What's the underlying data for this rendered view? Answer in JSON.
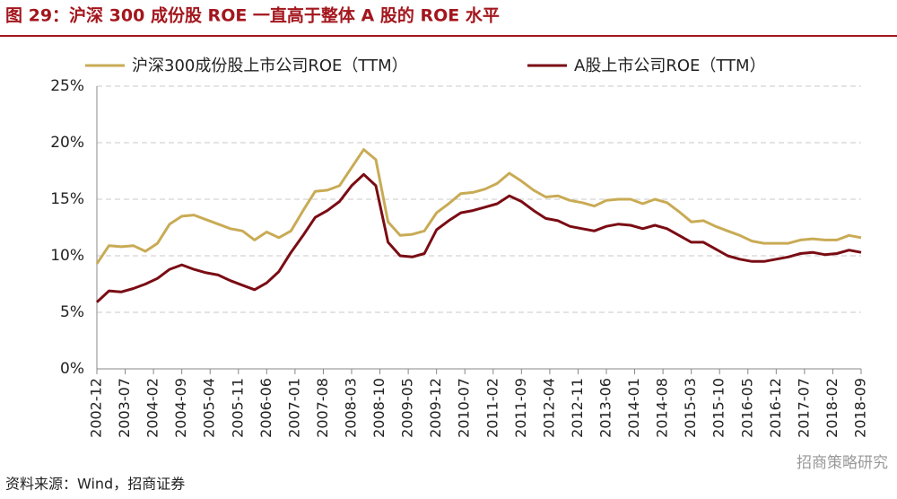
{
  "chart_data": {
    "type": "line",
    "title": "图 29：沪深 300 成份股 ROE 一直高于整体 A 股的 ROE 水平",
    "source": "资料来源：Wind，招商证券",
    "watermark": "招商策略研究",
    "x": [
      "2002-12",
      "2003-03",
      "2003-06",
      "2003-09",
      "2003-12",
      "2004-03",
      "2004-06",
      "2004-09",
      "2004-12",
      "2005-03",
      "2005-06",
      "2005-09",
      "2005-12",
      "2006-03",
      "2006-06",
      "2006-09",
      "2006-12",
      "2007-03",
      "2007-06",
      "2007-09",
      "2007-12",
      "2008-03",
      "2008-06",
      "2008-09",
      "2008-12",
      "2009-03",
      "2009-06",
      "2009-09",
      "2009-12",
      "2010-03",
      "2010-06",
      "2010-09",
      "2010-12",
      "2011-03",
      "2011-06",
      "2011-09",
      "2011-12",
      "2012-03",
      "2012-06",
      "2012-09",
      "2012-12",
      "2013-03",
      "2013-06",
      "2013-09",
      "2013-12",
      "2014-03",
      "2014-06",
      "2014-09",
      "2014-12",
      "2015-03",
      "2015-06",
      "2015-09",
      "2015-12",
      "2016-03",
      "2016-06",
      "2016-09",
      "2016-12",
      "2017-03",
      "2017-06",
      "2017-09",
      "2017-12",
      "2018-03",
      "2018-06",
      "2018-09"
    ],
    "series": [
      {
        "name": "沪深300成份股上市公司ROE（TTM）",
        "color": "#c9ab55",
        "values": [
          9.3,
          10.9,
          10.8,
          10.9,
          10.4,
          11.1,
          12.8,
          13.5,
          13.6,
          13.2,
          12.8,
          12.4,
          12.2,
          11.4,
          12.1,
          11.6,
          12.2,
          14.0,
          15.7,
          15.8,
          16.2,
          17.8,
          19.4,
          18.5,
          13.0,
          11.8,
          11.9,
          12.2,
          13.8,
          14.6,
          15.5,
          15.6,
          15.9,
          16.4,
          17.3,
          16.6,
          15.8,
          15.2,
          15.3,
          14.9,
          14.7,
          14.4,
          14.9,
          15.0,
          15.0,
          14.6,
          15.0,
          14.7,
          13.9,
          13.0,
          13.1,
          12.6,
          12.2,
          11.8,
          11.3,
          11.1,
          11.1,
          11.1,
          11.4,
          11.5,
          11.4,
          11.4,
          11.8,
          11.6
        ]
      },
      {
        "name": "A股上市公司ROE（TTM）",
        "color": "#7a0c14",
        "values": [
          5.9,
          6.9,
          6.8,
          7.1,
          7.5,
          8.0,
          8.8,
          9.2,
          8.8,
          8.5,
          8.3,
          7.8,
          7.4,
          7.0,
          7.6,
          8.6,
          10.3,
          11.8,
          13.4,
          14.0,
          14.8,
          16.2,
          17.2,
          16.2,
          11.2,
          10.0,
          9.9,
          10.2,
          12.3,
          13.1,
          13.8,
          14.0,
          14.3,
          14.6,
          15.3,
          14.8,
          14.0,
          13.3,
          13.1,
          12.6,
          12.4,
          12.2,
          12.6,
          12.8,
          12.7,
          12.4,
          12.7,
          12.4,
          11.8,
          11.2,
          11.2,
          10.6,
          10.0,
          9.7,
          9.5,
          9.5,
          9.7,
          9.9,
          10.2,
          10.3,
          10.1,
          10.2,
          10.5,
          10.3
        ]
      }
    ],
    "xlim": [
      "2002-12",
      "2018-09"
    ],
    "xticks": [
      "2002-12",
      "2003-07",
      "2004-02",
      "2004-09",
      "2005-04",
      "2005-11",
      "2006-06",
      "2007-01",
      "2007-08",
      "2008-03",
      "2008-10",
      "2009-05",
      "2009-12",
      "2010-07",
      "2011-02",
      "2011-09",
      "2012-04",
      "2012-11",
      "2013-06",
      "2014-01",
      "2014-08",
      "2015-03",
      "2015-10",
      "2016-05",
      "2016-12",
      "2017-07",
      "2018-02",
      "2018-09"
    ],
    "ylim": [
      0,
      25
    ],
    "yticks": [
      {
        "value": 0,
        "label": "0%"
      },
      {
        "value": 5,
        "label": "5%"
      },
      {
        "value": 10,
        "label": "10%"
      },
      {
        "value": 15,
        "label": "15%"
      },
      {
        "value": 20,
        "label": "20%"
      },
      {
        "value": 25,
        "label": "25%"
      }
    ],
    "grid": true
  }
}
